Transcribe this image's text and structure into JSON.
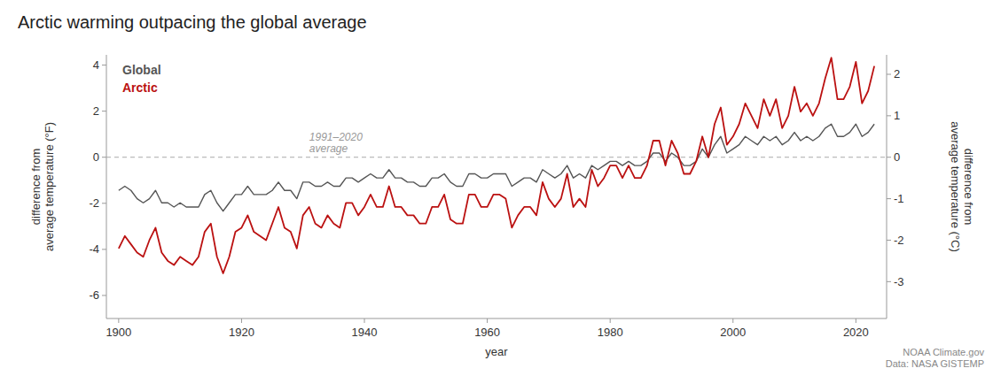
{
  "chart_data": {
    "type": "line",
    "title": "Arctic warming outpacing the global average",
    "x_label": "year",
    "y_label": "difference from\naverage temperature (°F)",
    "y2_label": "difference from\naverage temperature (°C)",
    "source": "NOAA Climate.gov\nData: NASA GISTEMP",
    "annotations": [
      {
        "text": "1991–2020\naverage",
        "y": 0
      }
    ],
    "x": [
      1900,
      1901,
      1902,
      1903,
      1904,
      1905,
      1906,
      1907,
      1908,
      1909,
      1910,
      1911,
      1912,
      1913,
      1914,
      1915,
      1916,
      1917,
      1918,
      1919,
      1920,
      1921,
      1922,
      1923,
      1924,
      1925,
      1926,
      1927,
      1928,
      1929,
      1930,
      1931,
      1932,
      1933,
      1934,
      1935,
      1936,
      1937,
      1938,
      1939,
      1940,
      1941,
      1942,
      1943,
      1944,
      1945,
      1946,
      1947,
      1948,
      1949,
      1950,
      1951,
      1952,
      1953,
      1954,
      1955,
      1956,
      1957,
      1958,
      1959,
      1960,
      1961,
      1962,
      1963,
      1964,
      1965,
      1966,
      1967,
      1968,
      1969,
      1970,
      1971,
      1972,
      1973,
      1974,
      1975,
      1976,
      1977,
      1978,
      1979,
      1980,
      1981,
      1982,
      1983,
      1984,
      1985,
      1986,
      1987,
      1988,
      1989,
      1990,
      1991,
      1992,
      1993,
      1994,
      1995,
      1996,
      1997,
      1998,
      1999,
      2000,
      2001,
      2002,
      2003,
      2004,
      2005,
      2006,
      2007,
      2008,
      2009,
      2010,
      2011,
      2012,
      2013,
      2014,
      2015,
      2016,
      2017,
      2018,
      2019,
      2020,
      2021,
      2022,
      2023
    ],
    "series": [
      {
        "name": "Global",
        "color": "#555555",
        "values": [
          -1.44,
          -1.26,
          -1.44,
          -1.8,
          -1.98,
          -1.8,
          -1.44,
          -1.98,
          -1.98,
          -2.16,
          -1.98,
          -2.16,
          -2.16,
          -2.16,
          -1.62,
          -1.44,
          -1.98,
          -2.34,
          -1.98,
          -1.62,
          -1.62,
          -1.26,
          -1.62,
          -1.62,
          -1.62,
          -1.44,
          -1.08,
          -1.44,
          -1.44,
          -1.8,
          -1.08,
          -1.08,
          -1.26,
          -1.26,
          -1.08,
          -1.26,
          -1.26,
          -0.9,
          -0.9,
          -1.08,
          -0.9,
          -0.72,
          -0.9,
          -0.9,
          -0.54,
          -0.9,
          -0.9,
          -1.08,
          -1.08,
          -1.26,
          -1.26,
          -0.9,
          -0.9,
          -0.72,
          -1.08,
          -1.26,
          -1.26,
          -0.72,
          -0.72,
          -0.9,
          -0.9,
          -0.72,
          -0.72,
          -0.72,
          -1.26,
          -1.08,
          -0.9,
          -0.9,
          -1.08,
          -0.54,
          -0.72,
          -0.9,
          -0.72,
          -0.36,
          -0.9,
          -0.72,
          -0.9,
          -0.36,
          -0.54,
          -0.36,
          -0.18,
          -0.18,
          -0.36,
          -0.18,
          -0.36,
          -0.36,
          -0.18,
          0.18,
          0.18,
          -0.18,
          0.18,
          0.0,
          -0.36,
          -0.36,
          -0.18,
          0.36,
          0.0,
          0.54,
          0.9,
          0.18,
          0.36,
          0.54,
          0.9,
          0.72,
          0.54,
          0.9,
          0.72,
          0.9,
          0.54,
          0.72,
          1.08,
          0.72,
          0.9,
          0.72,
          0.9,
          1.26,
          1.44,
          0.9,
          0.9,
          1.08,
          1.44,
          0.9,
          1.08,
          1.44
        ]
      },
      {
        "name": "Arctic",
        "color": "#bb1111",
        "values": [
          -3.96,
          -3.42,
          -3.78,
          -4.14,
          -4.32,
          -3.6,
          -3.06,
          -4.14,
          -4.5,
          -4.68,
          -4.32,
          -4.5,
          -4.68,
          -4.32,
          -3.24,
          -2.88,
          -4.32,
          -5.04,
          -4.32,
          -3.24,
          -3.06,
          -2.52,
          -3.24,
          -3.42,
          -3.6,
          -2.88,
          -2.16,
          -3.06,
          -3.24,
          -3.96,
          -2.52,
          -2.16,
          -2.88,
          -3.06,
          -2.52,
          -2.88,
          -3.06,
          -1.98,
          -1.98,
          -2.52,
          -2.16,
          -1.62,
          -2.16,
          -2.16,
          -1.26,
          -2.16,
          -2.16,
          -2.52,
          -2.52,
          -2.88,
          -2.88,
          -2.16,
          -2.16,
          -1.62,
          -2.7,
          -2.88,
          -2.88,
          -1.62,
          -1.62,
          -2.16,
          -2.16,
          -1.62,
          -1.62,
          -1.8,
          -3.06,
          -2.52,
          -2.16,
          -2.16,
          -2.52,
          -1.08,
          -1.8,
          -2.16,
          -1.8,
          -0.72,
          -2.16,
          -1.8,
          -2.16,
          -0.54,
          -1.26,
          -0.9,
          -0.36,
          -0.36,
          -0.9,
          -0.36,
          -0.9,
          -0.9,
          -0.36,
          0.72,
          0.72,
          -0.36,
          0.72,
          0.18,
          -0.72,
          -0.72,
          -0.18,
          0.9,
          0.0,
          1.44,
          2.16,
          0.54,
          0.9,
          1.44,
          2.34,
          1.8,
          1.26,
          2.52,
          1.8,
          2.52,
          1.26,
          1.8,
          3.06,
          1.98,
          2.34,
          1.8,
          2.34,
          3.42,
          4.32,
          2.52,
          2.52,
          3.06,
          4.14,
          2.34,
          2.88,
          3.96
        ]
      }
    ],
    "xlim": [
      1898,
      2025
    ],
    "xticks": [
      1900,
      1920,
      1940,
      1960,
      1980,
      2000,
      2020
    ],
    "ylim": [
      -7,
      4.4444
    ],
    "yticks": [
      -6,
      -4,
      -2,
      0,
      2,
      4
    ],
    "y2lim": [
      -3.888888888888889,
      2.469111111111111
    ],
    "y2ticks": [
      -3,
      -2,
      -1,
      0,
      1,
      2
    ],
    "grid": false
  }
}
